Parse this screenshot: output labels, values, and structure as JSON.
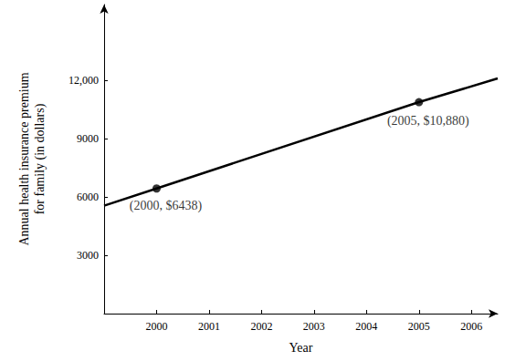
{
  "chart_data": {
    "type": "line",
    "x_label": "Year",
    "y_label": "Annual health insurance premium\nfor family (in dollars)",
    "xlim": [
      1999,
      2006.5
    ],
    "xticks": [
      2000,
      2001,
      2002,
      2003,
      2004,
      2005,
      2006
    ],
    "ylim": [
      0,
      15900
    ],
    "yticks": [
      3000,
      6000,
      9000,
      {
        "value": 12000,
        "label": "12,000"
      }
    ],
    "grid": false,
    "series": [
      {
        "type": "line",
        "color": "#000000",
        "marker": "none",
        "line_style": "solid",
        "x": [
          1999,
          2000,
          2005,
          2006.5
        ],
        "values": [
          5550,
          6438,
          10880,
          12100
        ]
      }
    ],
    "annotations": [
      {
        "x": 2000,
        "y": 6438,
        "text": "(2000, $6438)",
        "color": "#000000",
        "marker": "circle"
      },
      {
        "x": 2005,
        "y": 10880,
        "text": "(2005, $10,880)",
        "color": "#000000",
        "marker": "circle"
      }
    ]
  }
}
